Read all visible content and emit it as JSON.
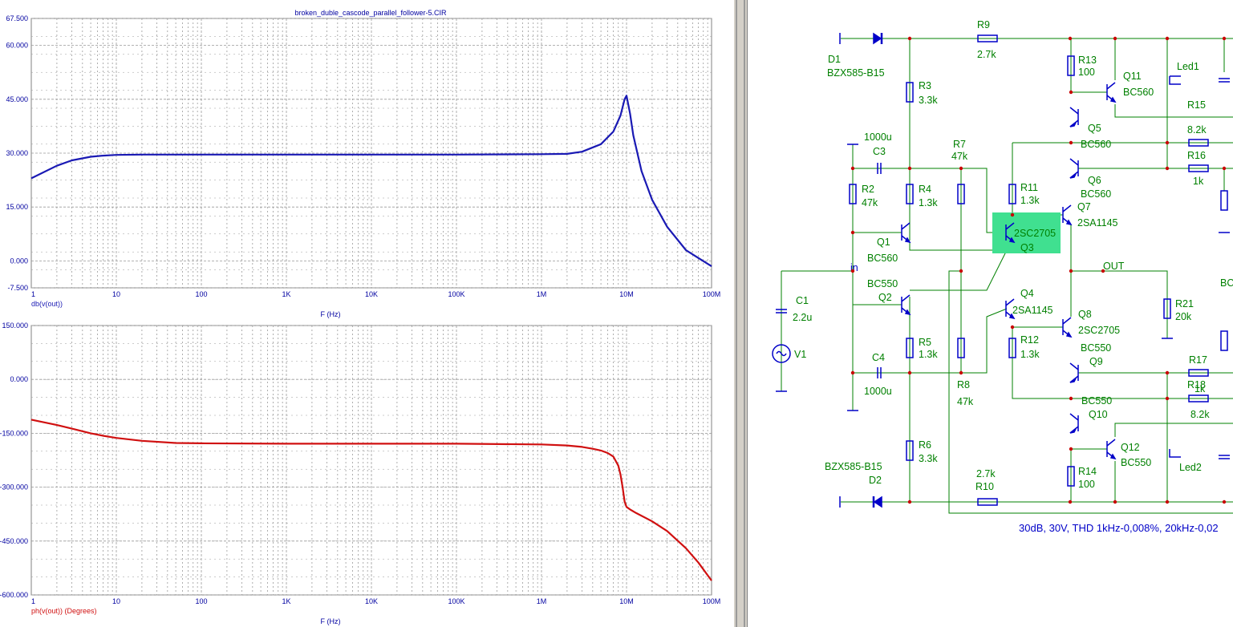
{
  "analysis": {
    "title": "broken_duble_cascode_parallel_follower-5.CIR",
    "x_tick_labels": [
      "1",
      "10",
      "100",
      "1K",
      "10K",
      "100K",
      "1M",
      "10M",
      "100M"
    ],
    "x_axis_label": "F (Hz)",
    "colors": {
      "gain": "#1a1ab4",
      "phase": "#d01010",
      "grid": "#9a9a9a",
      "text": "#0000a0"
    }
  },
  "chart_data": [
    {
      "type": "line",
      "xscale": "log",
      "xlim": [
        1,
        100000000
      ],
      "ylim": [
        -7.5,
        67.5
      ],
      "yticks": [
        67.5,
        60,
        45,
        30,
        15,
        0,
        -7.5
      ],
      "ytick_labels": [
        "67.500",
        "60.000",
        "45.000",
        "30.000",
        "15.000",
        "0.000",
        "-7.500"
      ],
      "xlabel": "F (Hz)",
      "ylabel": "db(v(out))",
      "grid": true,
      "series": [
        {
          "name": "db(v(out))",
          "color": "#1a1ab4",
          "x": [
            1,
            2,
            3,
            5,
            7,
            10,
            20,
            100,
            1000,
            10000,
            100000,
            1000000,
            2000000,
            3000000,
            5000000,
            7000000,
            8500000,
            9500000,
            10000000,
            11000000,
            12000000,
            15000000,
            20000000,
            30000000,
            50000000,
            70000000,
            100000000
          ],
          "y": [
            23,
            26.5,
            28,
            29,
            29.3,
            29.5,
            29.6,
            29.6,
            29.6,
            29.6,
            29.6,
            29.7,
            29.8,
            30.4,
            32.5,
            36,
            40.5,
            45,
            46,
            41,
            35,
            25,
            17,
            9.5,
            3,
            0.8,
            -1.5
          ]
        }
      ]
    },
    {
      "type": "line",
      "xscale": "log",
      "xlim": [
        1,
        100000000
      ],
      "ylim": [
        -600,
        150
      ],
      "yticks": [
        150,
        0,
        -150,
        -300,
        -450,
        -600
      ],
      "ytick_labels": [
        "150.000",
        "0.000",
        "-150.000",
        "-300.000",
        "-450.000",
        "-600.000"
      ],
      "xlabel": "F (Hz)",
      "ylabel": "ph(v(out)) (Degrees)",
      "grid": true,
      "series": [
        {
          "name": "ph(v(out))",
          "color": "#d01010",
          "x": [
            1,
            2,
            3,
            5,
            7,
            10,
            20,
            50,
            100,
            1000,
            10000,
            100000,
            1000000,
            2000000,
            3000000,
            4000000,
            5000000,
            6000000,
            7000000,
            8000000,
            8500000,
            9000000,
            9500000,
            10000000,
            11000000,
            13000000,
            20000000,
            30000000,
            50000000,
            70000000,
            100000000
          ],
          "y": [
            -112,
            -127,
            -137,
            -150,
            -157,
            -163,
            -171,
            -177,
            -178,
            -179,
            -179,
            -179,
            -181,
            -184,
            -188,
            -193,
            -198,
            -205,
            -215,
            -240,
            -265,
            -300,
            -340,
            -355,
            -362,
            -372,
            -395,
            -422,
            -470,
            -510,
            -560
          ]
        }
      ]
    }
  ],
  "schematic": {
    "components": [
      {
        "ref": "D1",
        "value": "BZX585-B15"
      },
      {
        "ref": "D2",
        "value": "BZX585-B15"
      },
      {
        "ref": "R9",
        "value": "2.7k"
      },
      {
        "ref": "R10",
        "value": "2.7k"
      },
      {
        "ref": "R3",
        "value": "3.3k"
      },
      {
        "ref": "R4",
        "value": "1.3k"
      },
      {
        "ref": "R5",
        "value": "1.3k"
      },
      {
        "ref": "R6",
        "value": "3.3k"
      },
      {
        "ref": "R2",
        "value": "47k"
      },
      {
        "ref": "R7",
        "value": "47k"
      },
      {
        "ref": "R8",
        "value": "47k"
      },
      {
        "ref": "R11",
        "value": "1.3k"
      },
      {
        "ref": "R12",
        "value": "1.3k"
      },
      {
        "ref": "R13",
        "value": "100"
      },
      {
        "ref": "R14",
        "value": "100"
      },
      {
        "ref": "R15",
        "value": "8.2k"
      },
      {
        "ref": "R16",
        "value": "1k"
      },
      {
        "ref": "R17",
        "value": "1k"
      },
      {
        "ref": "R18",
        "value": "8.2k"
      },
      {
        "ref": "R21",
        "value": "20k"
      },
      {
        "ref": "C1",
        "value": "2.2u"
      },
      {
        "ref": "C3",
        "value": "1000u"
      },
      {
        "ref": "C4",
        "value": "1000u"
      },
      {
        "ref": "V1",
        "value": ""
      },
      {
        "ref": "Q1",
        "value": "BC560"
      },
      {
        "ref": "Q2",
        "value": "BC550"
      },
      {
        "ref": "Q3",
        "value": "2SC2705"
      },
      {
        "ref": "Q4",
        "value": "2SA1145"
      },
      {
        "ref": "Q5",
        "value": "BC560"
      },
      {
        "ref": "Q6",
        "value": "BC560"
      },
      {
        "ref": "Q7",
        "value": "2SA1145"
      },
      {
        "ref": "Q8",
        "value": "2SC2705"
      },
      {
        "ref": "Q9",
        "value": "BC550"
      },
      {
        "ref": "Q10",
        "value": "BC550"
      },
      {
        "ref": "Q11",
        "value": "BC560"
      },
      {
        "ref": "Q12",
        "value": "BC550"
      },
      {
        "ref": "Led1",
        "value": ""
      },
      {
        "ref": "Led2",
        "value": ""
      }
    ],
    "net_labels": {
      "input": "in",
      "output": "OUT"
    },
    "partial_label": "BC",
    "note": "30dB, 30V, THD 1kHz-0,008%, 20kHz-0,02",
    "colors": {
      "wire": "#008000",
      "component": "#0000c8",
      "text": "#008000",
      "node": "#c80000",
      "highlight": "#40e090"
    }
  }
}
